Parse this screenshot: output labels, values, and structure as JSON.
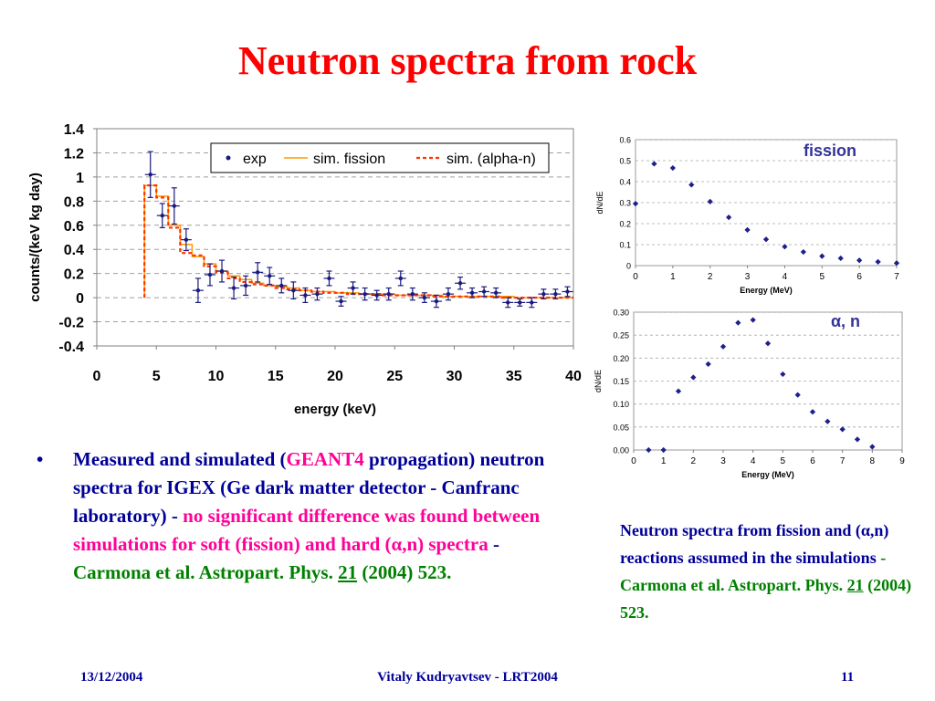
{
  "title": "Neutron spectra from rock",
  "bullet": {
    "symbol": "•",
    "p1": "Measured and simulated (",
    "p2": "GEANT4",
    "p3": "propagation) neutron spectra for IGEX (Ge dark matter detector - Canfranc laboratory) - ",
    "p4": "no significant difference was found between simulations for soft (fission) and hard (α,n) spectra",
    "p5": " - ",
    "p6": "Carmona et al. Astropart. Phys.",
    "p7": " ",
    "p8": "21",
    "p9": " (2004) 523."
  },
  "caption": {
    "p1": "Neutron spectra from fission and (α,n) reactions assumed in the simulations",
    "p2": "- Carmona et al. Astropart. Phys.",
    "p3": " ",
    "p4": "21",
    "p5": " (2004) 523."
  },
  "footer": {
    "date": "13/12/2004",
    "author": "Vitaly Kudryavtsev - LRT2004",
    "page": "11"
  },
  "colors": {
    "title": "#ff0000",
    "text": "#000099",
    "highlight": "#ff0099",
    "citation": "#008000",
    "exp": "#1a1a80",
    "fission_line": "#ff9900",
    "alphan_line": "#ff3300",
    "small_points": "#1f1f8c",
    "inset_label": "#333399"
  },
  "chart_data": [
    {
      "type": "scatter",
      "xlabel": "energy (keV)",
      "ylabel": "counts/(keV kg day)",
      "xlim": [
        0,
        40
      ],
      "ylim": [
        -0.4,
        1.4
      ],
      "xticks": [
        0,
        5,
        10,
        15,
        20,
        25,
        30,
        35,
        40
      ],
      "yticks": [
        -0.4,
        -0.2,
        0,
        0.2,
        0.4,
        0.6,
        0.8,
        1,
        1.2,
        1.4
      ],
      "grid": "horizontal dashed",
      "legend_position": "top-right",
      "series": [
        {
          "name": "exp",
          "style": "points with error bars",
          "x": [
            4.5,
            5.5,
            6.5,
            7.5,
            8.5,
            9.5,
            10.5,
            11.5,
            12.5,
            13.5,
            14.5,
            15.5,
            16.5,
            17.5,
            18.5,
            19.5,
            20.5,
            21.5,
            22.5,
            23.5,
            24.5,
            25.5,
            26.5,
            27.5,
            28.5,
            29.5,
            30.5,
            31.5,
            32.5,
            33.5,
            34.5,
            35.5,
            36.5,
            37.5,
            38.5,
            39.5
          ],
          "y": [
            1.02,
            0.68,
            0.76,
            0.48,
            0.06,
            0.19,
            0.22,
            0.08,
            0.1,
            0.21,
            0.18,
            0.1,
            0.06,
            0.02,
            0.03,
            0.16,
            -0.03,
            0.08,
            0.03,
            0.02,
            0.03,
            0.16,
            0.03,
            0.0,
            -0.03,
            0.03,
            0.12,
            0.04,
            0.05,
            0.04,
            -0.04,
            -0.04,
            -0.04,
            0.03,
            0.03,
            0.05
          ],
          "yerr": [
            0.19,
            0.1,
            0.15,
            0.09,
            0.1,
            0.09,
            0.09,
            0.09,
            0.08,
            0.08,
            0.07,
            0.06,
            0.07,
            0.06,
            0.05,
            0.06,
            0.04,
            0.05,
            0.05,
            0.04,
            0.05,
            0.06,
            0.05,
            0.04,
            0.05,
            0.05,
            0.05,
            0.04,
            0.04,
            0.04,
            0.04,
            0.03,
            0.04,
            0.04,
            0.04,
            0.04
          ]
        },
        {
          "name": "sim. fission",
          "style": "solid step line",
          "x": [
            4,
            5,
            6,
            7,
            8,
            9,
            10,
            11,
            12,
            13,
            14,
            15,
            16,
            17,
            18,
            19,
            20,
            21,
            22,
            23,
            24,
            25,
            26,
            27,
            28,
            29,
            30,
            31,
            32,
            33,
            34,
            35,
            36,
            37,
            38,
            39,
            40
          ],
          "y": [
            0.93,
            0.84,
            0.6,
            0.44,
            0.34,
            0.28,
            0.22,
            0.18,
            0.15,
            0.12,
            0.1,
            0.09,
            0.08,
            0.06,
            0.05,
            0.05,
            0.04,
            0.04,
            0.03,
            0.03,
            0.03,
            0.02,
            0.02,
            0.02,
            0.02,
            0.01,
            0.01,
            0.01,
            0.01,
            0.01,
            0.01,
            0.0,
            0.0,
            0.0,
            0.0,
            0.0,
            0.0
          ]
        },
        {
          "name": "sim. (alpha-n)",
          "style": "dashed step line",
          "x": [
            4,
            5,
            6,
            7,
            8,
            9,
            10,
            11,
            12,
            13,
            14,
            15,
            16,
            17,
            18,
            19,
            20,
            21,
            22,
            23,
            24,
            25,
            26,
            27,
            28,
            29,
            30,
            31,
            32,
            33,
            34,
            35,
            36,
            37,
            38,
            39,
            40
          ],
          "y": [
            0.93,
            0.83,
            0.58,
            0.37,
            0.35,
            0.26,
            0.21,
            0.16,
            0.13,
            0.11,
            0.1,
            0.08,
            0.07,
            0.06,
            0.05,
            0.04,
            0.04,
            0.03,
            0.03,
            0.03,
            0.02,
            0.02,
            0.02,
            0.02,
            0.01,
            0.01,
            0.01,
            0.01,
            0.01,
            0.01,
            0.0,
            0.0,
            0.0,
            0.0,
            0.0,
            0.0,
            0.0
          ]
        }
      ]
    },
    {
      "type": "scatter",
      "label": "fission",
      "xlabel": "Energy (MeV)",
      "ylabel": "dN/dE",
      "xlim": [
        0,
        7
      ],
      "ylim": [
        0,
        0.6
      ],
      "xticks": [
        0,
        1,
        2,
        3,
        4,
        5,
        6,
        7
      ],
      "yticks": [
        0,
        0.1,
        0.2,
        0.3,
        0.4,
        0.5,
        0.6
      ],
      "ytick_labels": [
        "0",
        "0.1",
        "0.2",
        "0.3",
        "0.4",
        "0.5",
        "0.6"
      ],
      "grid": "horizontal dashed",
      "x": [
        0,
        0.5,
        1,
        1.5,
        2,
        2.5,
        3,
        3.5,
        4,
        4.5,
        5,
        5.5,
        6,
        6.5,
        7
      ],
      "y": [
        0.295,
        0.485,
        0.465,
        0.385,
        0.305,
        0.23,
        0.17,
        0.125,
        0.09,
        0.065,
        0.045,
        0.035,
        0.025,
        0.018,
        0.012
      ]
    },
    {
      "type": "scatter",
      "label": "α, n",
      "xlabel": "Energy (MeV)",
      "ylabel": "dN/dE",
      "xlim": [
        0,
        9
      ],
      "ylim": [
        0,
        0.3
      ],
      "xticks": [
        0,
        1,
        2,
        3,
        4,
        5,
        6,
        7,
        8,
        9
      ],
      "yticks": [
        0,
        0.05,
        0.1,
        0.15,
        0.2,
        0.25,
        0.3
      ],
      "ytick_labels": [
        "0.00",
        "0.05",
        "0.10",
        "0.15",
        "0.20",
        "0.25",
        "0.30"
      ],
      "grid": "horizontal dashed",
      "x": [
        0.5,
        1,
        1.5,
        2,
        2.5,
        3,
        3.5,
        4,
        4.5,
        5,
        5.5,
        6,
        6.5,
        7,
        7.5,
        8
      ],
      "y": [
        0.0,
        0.0,
        0.128,
        0.158,
        0.187,
        0.225,
        0.277,
        0.283,
        0.232,
        0.165,
        0.12,
        0.083,
        0.062,
        0.045,
        0.023,
        0.007
      ]
    }
  ]
}
